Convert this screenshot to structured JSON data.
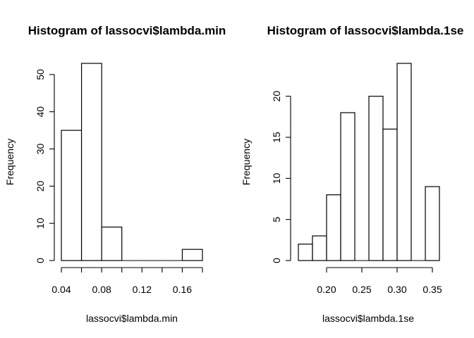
{
  "chart_data": [
    {
      "type": "bar",
      "title": "Histogram of lassocvi$lambda.min",
      "xlabel": "lassocvi$lambda.min",
      "ylabel": "Frequency",
      "bin_edges": [
        0.04,
        0.06,
        0.08,
        0.1,
        0.12,
        0.14,
        0.16,
        0.18
      ],
      "values": [
        35,
        53,
        9,
        0,
        0,
        0,
        3
      ],
      "xlim": [
        0.04,
        0.18
      ],
      "ylim": [
        0,
        53
      ],
      "xticks": [
        0.04,
        0.06,
        0.08,
        0.1,
        0.12,
        0.14,
        0.16,
        0.18
      ],
      "xtick_labels": [
        "0.04",
        "",
        "0.08",
        "",
        "0.12",
        "",
        "0.16",
        ""
      ],
      "yticks": [
        0,
        10,
        20,
        30,
        40,
        50
      ],
      "ytick_labels": [
        "0",
        "10",
        "20",
        "30",
        "40",
        "50"
      ],
      "grid": false,
      "legend": "none"
    },
    {
      "type": "bar",
      "title": "Histogram of lassocvi$lambda.1se",
      "xlabel": "lassocvi$lambda.1se",
      "ylabel": "Frequency",
      "bin_edges": [
        0.16,
        0.18,
        0.2,
        0.22,
        0.24,
        0.26,
        0.28,
        0.3,
        0.32,
        0.34,
        0.36
      ],
      "values": [
        2,
        3,
        8,
        18,
        0,
        20,
        16,
        24,
        0,
        9
      ],
      "xlim": [
        0.16,
        0.36
      ],
      "ylim": [
        0,
        24
      ],
      "xticks": [
        0.2,
        0.25,
        0.3,
        0.35
      ],
      "xtick_labels": [
        "0.20",
        "0.25",
        "0.30",
        "0.35"
      ],
      "yticks": [
        0,
        5,
        10,
        15,
        20
      ],
      "ytick_labels": [
        "0",
        "5",
        "10",
        "15",
        "20"
      ],
      "grid": false,
      "legend": "none"
    }
  ]
}
